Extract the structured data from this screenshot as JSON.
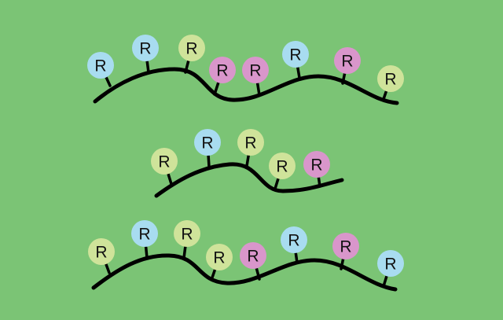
{
  "colors": {
    "background": "#7bc475",
    "backbone": "#000000",
    "blue": "#a8dcf0",
    "yellow_green": "#cfe39a",
    "pink": "#d996cb"
  },
  "chains": [
    {
      "groups": [
        {
          "label": "R",
          "color": "blue"
        },
        {
          "label": "R",
          "color": "blue"
        },
        {
          "label": "R",
          "color": "yellow_green"
        },
        {
          "label": "R",
          "color": "pink"
        },
        {
          "label": "R",
          "color": "pink"
        },
        {
          "label": "R",
          "color": "blue"
        },
        {
          "label": "R",
          "color": "pink"
        },
        {
          "label": "R",
          "color": "yellow_green"
        }
      ]
    },
    {
      "groups": [
        {
          "label": "R",
          "color": "yellow_green"
        },
        {
          "label": "R",
          "color": "blue"
        },
        {
          "label": "R",
          "color": "yellow_green"
        },
        {
          "label": "R",
          "color": "yellow_green"
        },
        {
          "label": "R",
          "color": "pink"
        }
      ]
    },
    {
      "groups": [
        {
          "label": "R",
          "color": "yellow_green"
        },
        {
          "label": "R",
          "color": "blue"
        },
        {
          "label": "R",
          "color": "yellow_green"
        },
        {
          "label": "R",
          "color": "yellow_green"
        },
        {
          "label": "R",
          "color": "pink"
        },
        {
          "label": "R",
          "color": "blue"
        },
        {
          "label": "R",
          "color": "pink"
        },
        {
          "label": "R",
          "color": "blue"
        }
      ]
    }
  ]
}
